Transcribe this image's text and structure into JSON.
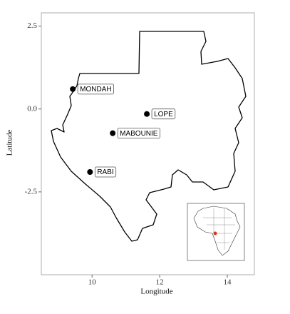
{
  "chart_data": {
    "type": "scatter",
    "xlabel": "Longitude",
    "ylabel": "Latitude",
    "x": [
      9.43,
      11.62,
      10.61,
      9.94
    ],
    "values": [
      0.6,
      -0.15,
      -0.73,
      -1.9
    ],
    "point_labels": [
      "MONDAH",
      "LOPE",
      "MABOUNIE",
      "RABI"
    ],
    "color": "#000000",
    "xlim": [
      8.5,
      14.8
    ],
    "ylim": [
      -5.0,
      2.9
    ],
    "xticks": [
      10,
      12,
      14
    ],
    "yticks": [
      2.5,
      {
        "value": 0,
        "label": "0.0"
      },
      -2.5
    ]
  }
}
